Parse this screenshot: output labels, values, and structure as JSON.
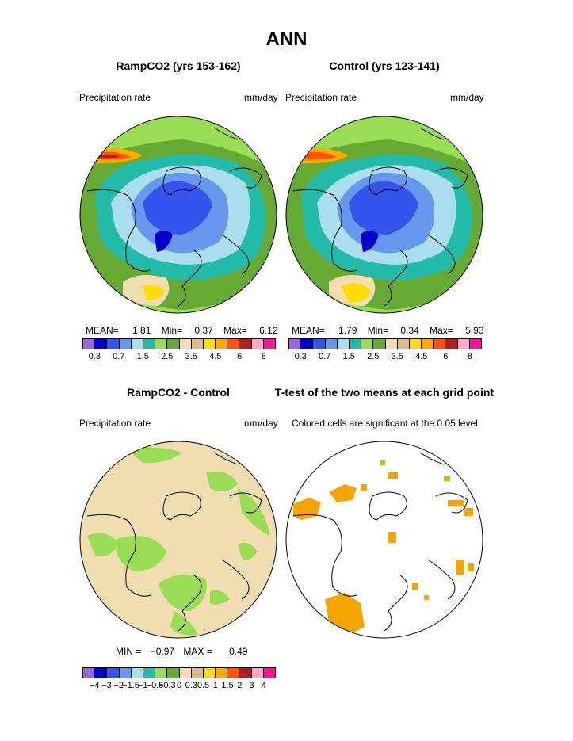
{
  "title": "ANN",
  "panels": {
    "p1": {
      "title": "RampCO2 (yrs 153-162)",
      "left_label": "Precipitation rate",
      "right_label": "mm/day",
      "mean_label": "MEAN=",
      "mean": "1.81",
      "min_label": "Min=",
      "min": "0.37",
      "max_label": "Max=",
      "max": "6.12"
    },
    "p2": {
      "title": "Control (yrs 123-141)",
      "left_label": "Precipitation rate",
      "right_label": "mm/day",
      "mean_label": "MEAN=",
      "mean": "1.79",
      "min_label": "Min=",
      "min": "0.34",
      "max_label": "Max=",
      "max": "5.93"
    },
    "p3": {
      "title": "RampCO2 - Control",
      "left_label": "Precipitation rate",
      "right_label": "mm/day",
      "min_label": "MIN =",
      "min": "−0.97",
      "max_label": "MAX =",
      "max": "0.49"
    },
    "p4": {
      "title": "T-test of the two means at each grid point",
      "left_label": "Colored cells are significant at the 0.05 level"
    }
  },
  "colorbar_top": {
    "colors": [
      "#9966dd",
      "#0000cc",
      "#3355ee",
      "#6699ee",
      "#aaddee",
      "#22bbaa",
      "#99dd55",
      "#66aa33",
      "#f0deb0",
      "#ddbb88",
      "#ffdd00",
      "#ffaa00",
      "#ff5500",
      "#aa2222",
      "#ffaacc",
      "#ff1199"
    ],
    "ticks": [
      "0.3",
      "0.7",
      "1.5",
      "2.5",
      "3.5",
      "4.5",
      "6",
      "8"
    ]
  },
  "colorbar_diff": {
    "colors": [
      "#9966dd",
      "#0000cc",
      "#3355ee",
      "#6699ee",
      "#aaddee",
      "#22bbaa",
      "#99dd55",
      "#66aa33",
      "#f0deb0",
      "#ddbb88",
      "#ffdd00",
      "#ffaa00",
      "#ff5500",
      "#aa2222",
      "#ffaacc",
      "#ff1199"
    ],
    "ticks": [
      "−4",
      "−3",
      "−2",
      "−1.5",
      "−1",
      "−0.5",
      "−0.3",
      "0",
      "0.3",
      "0.5",
      "1",
      "1.5",
      "2",
      "3",
      "4"
    ]
  },
  "colors": {
    "significant": "#f5a500",
    "coast": "#000000"
  }
}
